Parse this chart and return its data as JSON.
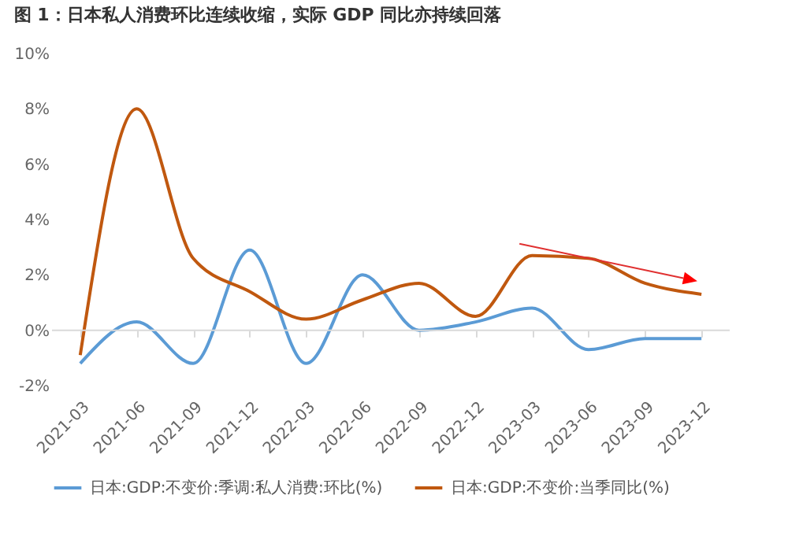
{
  "chart_data": {
    "type": "line",
    "title": "图 1：日本私人消费环比连续收缩，实际 GDP 同比亦持续回落",
    "categories": [
      "2021-03",
      "2021-06",
      "2021-09",
      "2021-12",
      "2022-03",
      "2022-06",
      "2022-09",
      "2022-12",
      "2023-03",
      "2023-06",
      "2023-09",
      "2023-12"
    ],
    "series": [
      {
        "name": "日本:GDP:不变价:季调:私人消费:环比(%)",
        "color": "#5b9bd5",
        "values": [
          -1.2,
          0.3,
          -1.2,
          2.9,
          -1.2,
          2.0,
          0.0,
          0.3,
          0.8,
          -0.7,
          -0.3,
          -0.3
        ]
      },
      {
        "name": "日本:GDP:不变价:当季同比(%)",
        "color": "#c0580f",
        "values": [
          -0.9,
          8.0,
          2.6,
          1.4,
          0.4,
          1.1,
          1.7,
          0.5,
          2.7,
          2.6,
          1.7,
          1.3
        ]
      }
    ],
    "ylim": [
      -2,
      10
    ],
    "yticks": [
      {
        "value": -2,
        "label": "-2%"
      },
      {
        "value": 0,
        "label": "0%"
      },
      {
        "value": 2,
        "label": "2%"
      },
      {
        "value": 4,
        "label": "4%"
      },
      {
        "value": 6,
        "label": "6%"
      },
      {
        "value": 8,
        "label": "8%"
      },
      {
        "value": 10,
        "label": "10%"
      }
    ],
    "ref_lines": [
      {
        "axis": "y",
        "value": 0,
        "color": "#d9d9d9"
      }
    ],
    "grid": false,
    "legend": "bottom",
    "marker": "none",
    "line_style": "solid"
  }
}
